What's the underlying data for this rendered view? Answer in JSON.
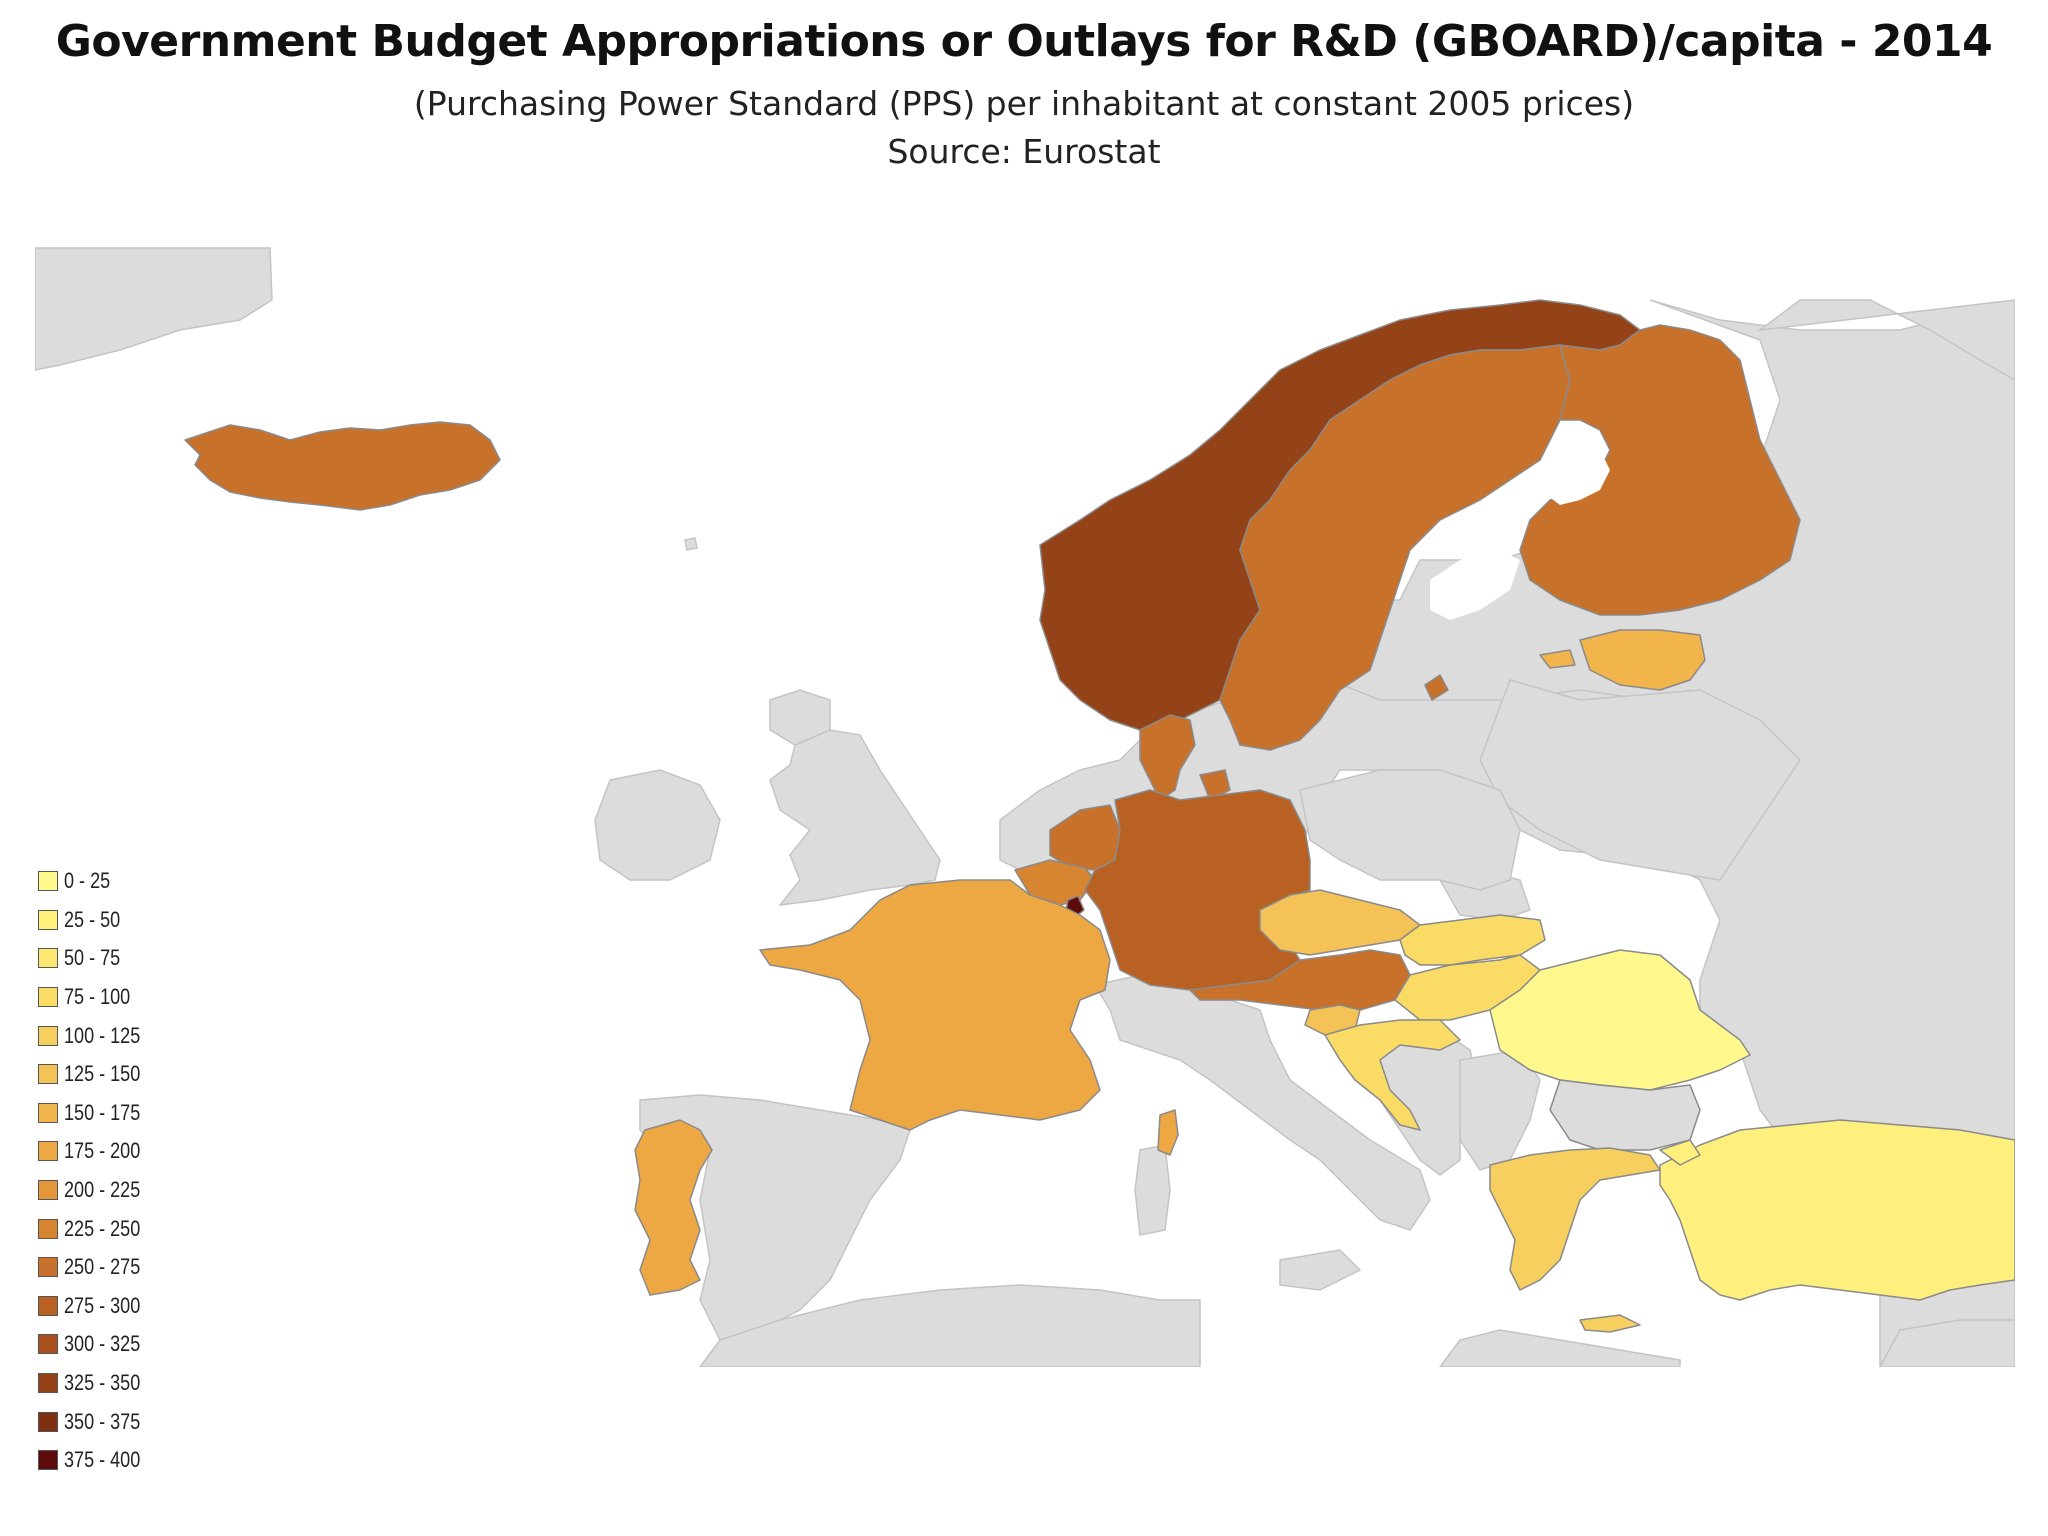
{
  "title": "Government Budget Appropriations or Outlays for R&D (GBOARD)/capita - 2014",
  "subtitle": "(Purchasing Power Standard (PPS) per inhabitant at constant 2005 prices)",
  "source": "Source: Eurostat",
  "colors": {
    "background": "#ffffff",
    "sea": "#ffffff",
    "no_data_land": "#dcdcdc",
    "border": "#9a9a9a"
  },
  "legend": [
    {
      "label": "0 - 25",
      "color": "#fff88c"
    },
    {
      "label": "25 - 50",
      "color": "#fff07e"
    },
    {
      "label": "50 - 75",
      "color": "#fde672"
    },
    {
      "label": "75 - 100",
      "color": "#fadb66"
    },
    {
      "label": "100 - 125",
      "color": "#f7cf5e"
    },
    {
      "label": "125 - 150",
      "color": "#f4c256"
    },
    {
      "label": "150 - 175",
      "color": "#f1b54c"
    },
    {
      "label": "175 - 200",
      "color": "#eda843"
    },
    {
      "label": "200 - 225",
      "color": "#e4973a"
    },
    {
      "label": "225 - 250",
      "color": "#d88532"
    },
    {
      "label": "250 - 275",
      "color": "#c8712a"
    },
    {
      "label": "275 - 300",
      "color": "#b96123"
    },
    {
      "label": "300 - 325",
      "color": "#a7501d"
    },
    {
      "label": "325 - 350",
      "color": "#944217"
    },
    {
      "label": "350 - 375",
      "color": "#7e3010"
    },
    {
      "label": "375 - 400",
      "color": "#5e0b0b"
    }
  ]
}
